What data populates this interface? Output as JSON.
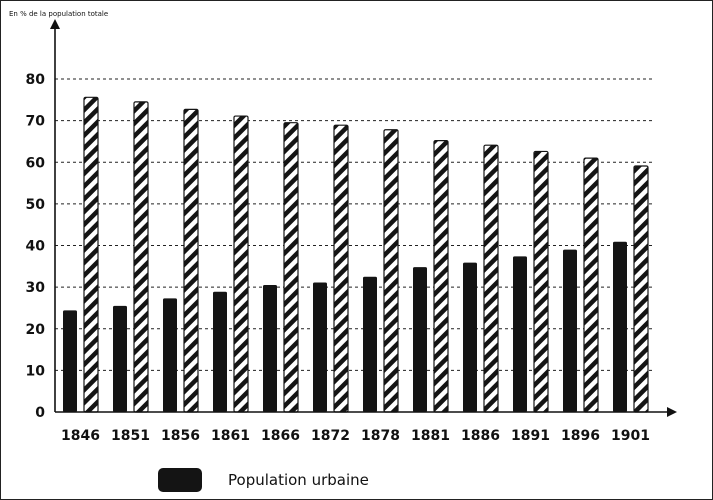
{
  "chart_data": {
    "type": "bar",
    "ylabel": "En % de la population totale",
    "ylim": [
      0,
      80
    ],
    "yticks": [
      0,
      10,
      20,
      30,
      40,
      50,
      60,
      70,
      80
    ],
    "grid": true,
    "grid_style": "dashed",
    "legend_position": "bottom",
    "categories": [
      "1846",
      "1851",
      "1856",
      "1861",
      "1866",
      "1872",
      "1878",
      "1881",
      "1886",
      "1891",
      "1896",
      "1901"
    ],
    "series": [
      {
        "name": "Population urbaine",
        "style": "solid",
        "color": "#141414",
        "values": [
          24.4,
          25.5,
          27.3,
          28.9,
          30.5,
          31.1,
          32.5,
          34.8,
          35.9,
          37.4,
          39.0,
          40.9
        ]
      },
      {
        "style": "hatched",
        "color": "#141414",
        "values": [
          75.6,
          74.5,
          72.7,
          71.1,
          69.5,
          68.9,
          67.8,
          65.2,
          64.1,
          62.6,
          61.0,
          59.1
        ]
      }
    ]
  }
}
